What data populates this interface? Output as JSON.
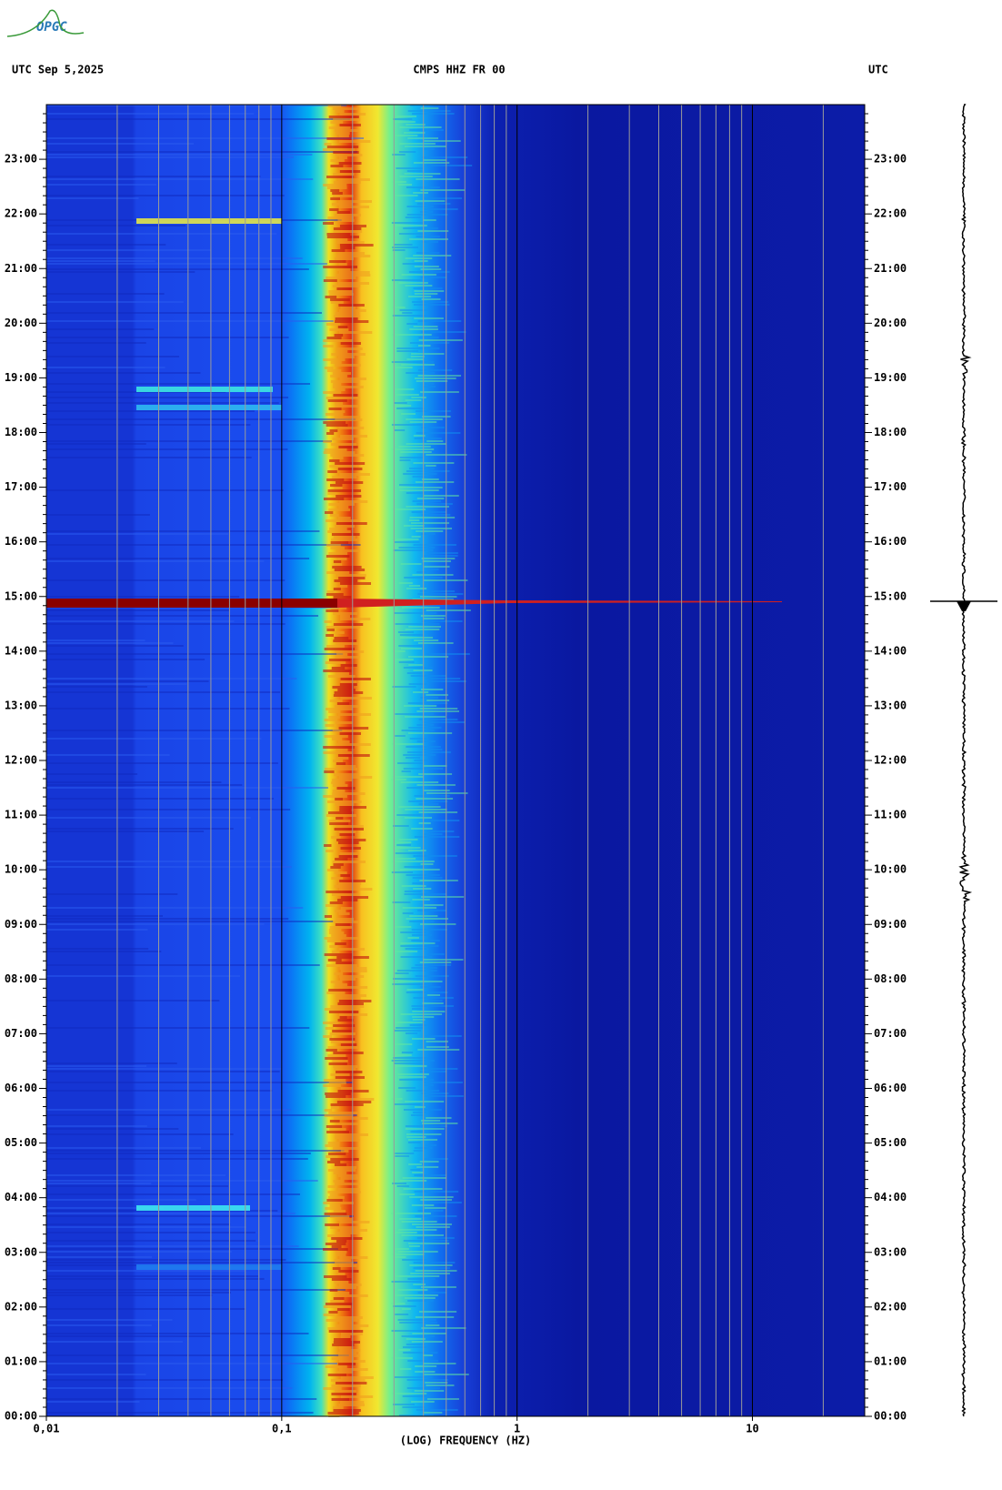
{
  "logo": "OPGC",
  "chart_data": {
    "type": "spectrogram",
    "title": "CMPS HHZ FR 00",
    "date_label": "UTC  Sep 5,2025",
    "right_label": "UTC",
    "xlabel": "(LOG) FREQUENCY (HZ)",
    "xscale": "log",
    "xlim": [
      0.01,
      30
    ],
    "xticks": [
      {
        "value": 0.01,
        "label": "0,01"
      },
      {
        "value": 0.1,
        "label": "0,1"
      },
      1,
      10
    ],
    "ylim": [
      0,
      24
    ],
    "yticks": [
      {
        "value": 0,
        "label": "00:00"
      },
      {
        "value": 1,
        "label": "01:00"
      },
      {
        "value": 2,
        "label": "02:00"
      },
      {
        "value": 3,
        "label": "03:00"
      },
      {
        "value": 4,
        "label": "04:00"
      },
      {
        "value": 5,
        "label": "05:00"
      },
      {
        "value": 6,
        "label": "06:00"
      },
      {
        "value": 7,
        "label": "07:00"
      },
      {
        "value": 8,
        "label": "08:00"
      },
      {
        "value": 9,
        "label": "09:00"
      },
      {
        "value": 10,
        "label": "10:00"
      },
      {
        "value": 11,
        "label": "11:00"
      },
      {
        "value": 12,
        "label": "12:00"
      },
      {
        "value": 13,
        "label": "13:00"
      },
      {
        "value": 14,
        "label": "14:00"
      },
      {
        "value": 15,
        "label": "15:00"
      },
      {
        "value": 16,
        "label": "16:00"
      },
      {
        "value": 17,
        "label": "17:00"
      },
      {
        "value": 18,
        "label": "18:00"
      },
      {
        "value": 19,
        "label": "19:00"
      },
      {
        "value": 20,
        "label": "20:00"
      },
      {
        "value": 21,
        "label": "21:00"
      },
      {
        "value": 22,
        "label": "22:00"
      },
      {
        "value": 23,
        "label": "23:00"
      }
    ],
    "grid": true
  }
}
